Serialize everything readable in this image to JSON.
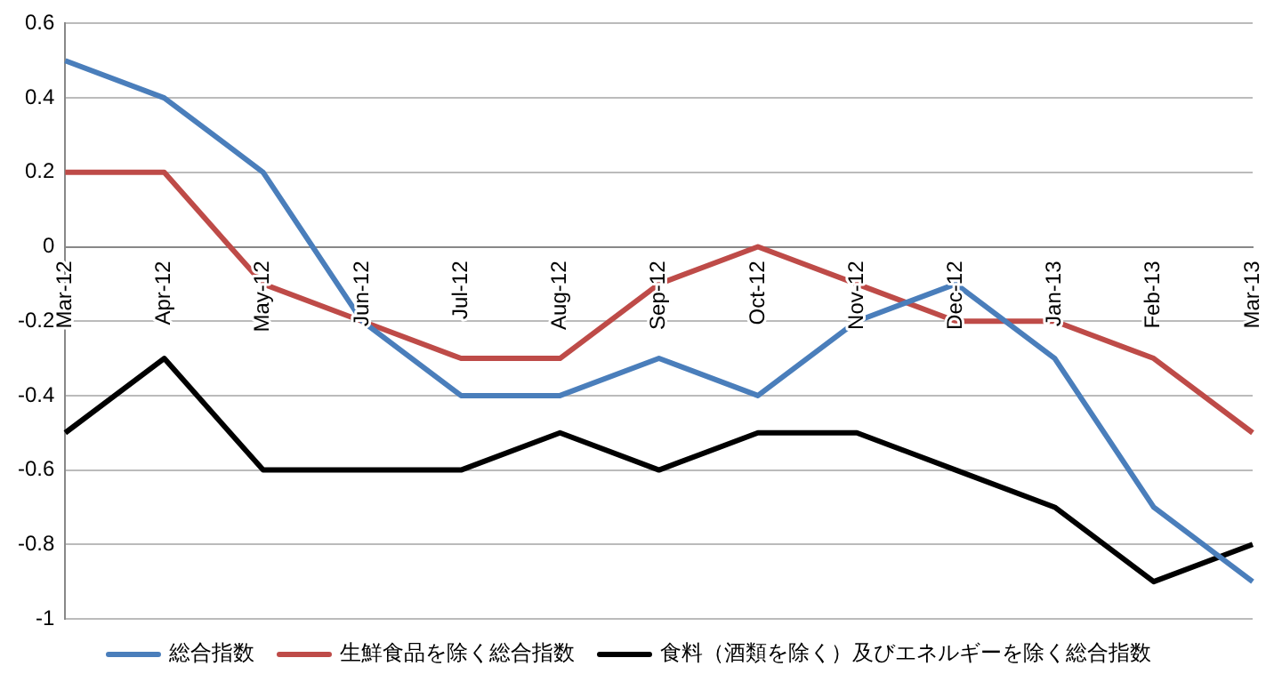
{
  "chart_data": {
    "type": "line",
    "categories": [
      "Mar-12",
      "Apr-12",
      "May-12",
      "Jun-12",
      "Jul-12",
      "Aug-12",
      "Sep-12",
      "Oct-12",
      "Nov-12",
      "Dec-12",
      "Jan-13",
      "Feb-13",
      "Mar-13"
    ],
    "series": [
      {
        "name": "総合指数",
        "color": "#4a7ebb",
        "values": [
          0.5,
          0.4,
          0.2,
          -0.2,
          -0.4,
          -0.4,
          -0.3,
          -0.4,
          -0.2,
          -0.1,
          -0.3,
          -0.7,
          -0.9
        ]
      },
      {
        "name": "生鮮食品を除く総合指数",
        "color": "#be4b48",
        "values": [
          0.2,
          0.2,
          -0.1,
          -0.2,
          -0.3,
          -0.3,
          -0.1,
          0,
          -0.1,
          -0.2,
          -0.2,
          -0.3,
          -0.5
        ]
      },
      {
        "name": "食料（酒類を除く）及びエネルギーを除く総合指数",
        "color": "#000000",
        "values": [
          -0.5,
          -0.3,
          -0.6,
          -0.6,
          -0.6,
          -0.5,
          -0.6,
          -0.5,
          -0.5,
          -0.6,
          -0.7,
          -0.9,
          -0.8
        ]
      }
    ],
    "ylim": [
      -1,
      0.6
    ],
    "yticks": [
      -1,
      -0.8,
      -0.6,
      -0.4,
      -0.2,
      0,
      0.2,
      0.4,
      0.6
    ],
    "grid": "y",
    "legend": "bottom",
    "marker": "none",
    "line_style": "solid"
  }
}
